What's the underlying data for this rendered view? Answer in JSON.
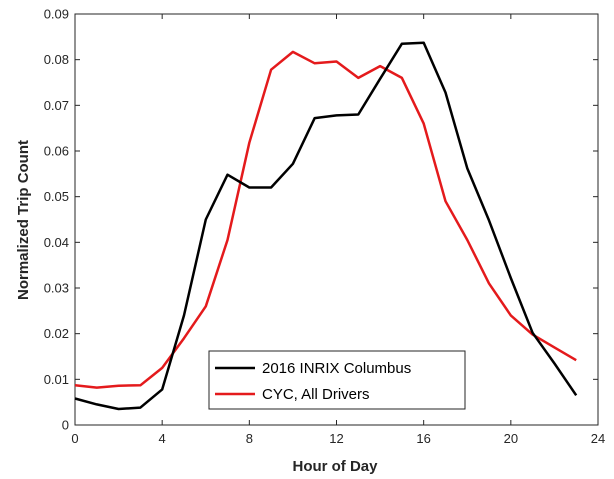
{
  "chart_data": {
    "type": "line",
    "title": "",
    "xlabel": "Hour of Day",
    "ylabel": "Normalized Trip Count",
    "xlim": [
      0,
      24
    ],
    "ylim": [
      0,
      0.09
    ],
    "x_ticks": [
      0,
      4,
      8,
      12,
      16,
      20,
      24
    ],
    "y_ticks": [
      0,
      0.01,
      0.02,
      0.03,
      0.04,
      0.05,
      0.06,
      0.07,
      0.08,
      0.09
    ],
    "grid": false,
    "legend_position": "bottom-center",
    "series": [
      {
        "name": "2016 INRIX Columbus",
        "color": "#000000",
        "x": [
          0,
          1,
          2,
          3,
          4,
          5,
          6,
          7,
          8,
          9,
          10,
          11,
          12,
          13,
          14,
          15,
          16,
          17,
          18,
          19,
          20,
          21,
          22,
          23
        ],
        "values": [
          0.0058,
          0.0045,
          0.0035,
          0.0038,
          0.0078,
          0.024,
          0.045,
          0.0548,
          0.052,
          0.052,
          0.0572,
          0.0672,
          0.0678,
          0.068,
          0.0758,
          0.0835,
          0.0837,
          0.0728,
          0.0562,
          0.0448,
          0.0322,
          0.0202,
          0.0135,
          0.0065
        ]
      },
      {
        "name": "CYC, All Drivers",
        "color": "#e41a1c",
        "x": [
          0,
          1,
          2,
          3,
          4,
          5,
          6,
          7,
          8,
          9,
          10,
          11,
          12,
          13,
          14,
          15,
          16,
          17,
          18,
          19,
          20,
          21,
          22,
          23
        ],
        "values": [
          0.0087,
          0.0082,
          0.0086,
          0.0087,
          0.0125,
          0.019,
          0.026,
          0.0405,
          0.0618,
          0.0778,
          0.0817,
          0.0792,
          0.0796,
          0.076,
          0.0786,
          0.076,
          0.066,
          0.049,
          0.0405,
          0.031,
          0.024,
          0.0198,
          0.017,
          0.0142
        ]
      }
    ]
  }
}
